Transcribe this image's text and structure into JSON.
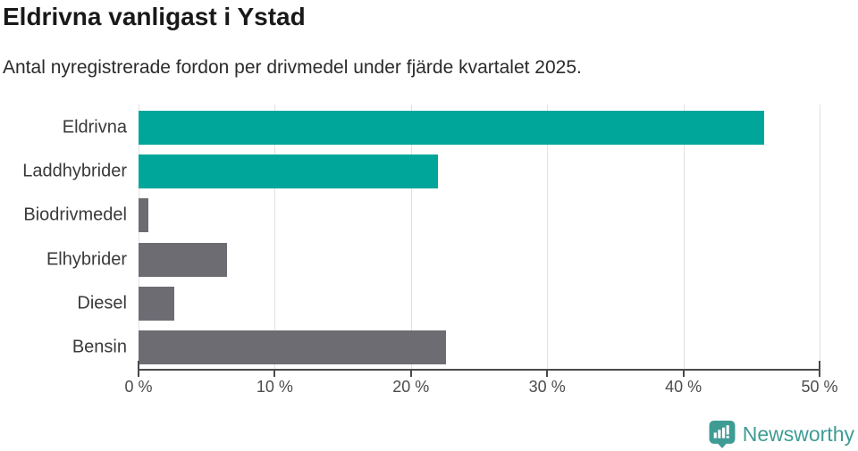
{
  "header": {
    "title": "Eldrivna vanligast i Ystad",
    "subtitle": "Antal nyregistrerade fordon per drivmedel under fjärde kvartalet 2025."
  },
  "chart_data": {
    "type": "bar",
    "orientation": "horizontal",
    "title": "Eldrivna vanligast i Ystad",
    "subtitle": "Antal nyregistrerade fordon per drivmedel under fjärde kvartalet 2025.",
    "xlabel": "",
    "ylabel": "",
    "unit": "%",
    "categories": [
      "Eldrivna",
      "Laddhybrider",
      "Biodrivmedel",
      "Elhybrider",
      "Diesel",
      "Bensin"
    ],
    "values": [
      45.9,
      22.0,
      0.7,
      6.5,
      2.6,
      22.6
    ],
    "bar_colors": [
      "#00A69A",
      "#00A69A",
      "#6E6C73",
      "#6E6C73",
      "#6E6C73",
      "#6E6C73"
    ],
    "xlim": [
      0,
      50
    ],
    "x_ticks": [
      "0 %",
      "10 %",
      "20 %",
      "30 %",
      "40 %",
      "50 %"
    ],
    "grid": true,
    "legend": "none"
  },
  "colors": {
    "teal": "#00A69A",
    "gray": "#6E6C73",
    "gridline": "#e1e1e1",
    "axis": "#4a4a4a",
    "brand_teal": "#3f9c95"
  },
  "footer": {
    "brand": "Newsworthy"
  }
}
